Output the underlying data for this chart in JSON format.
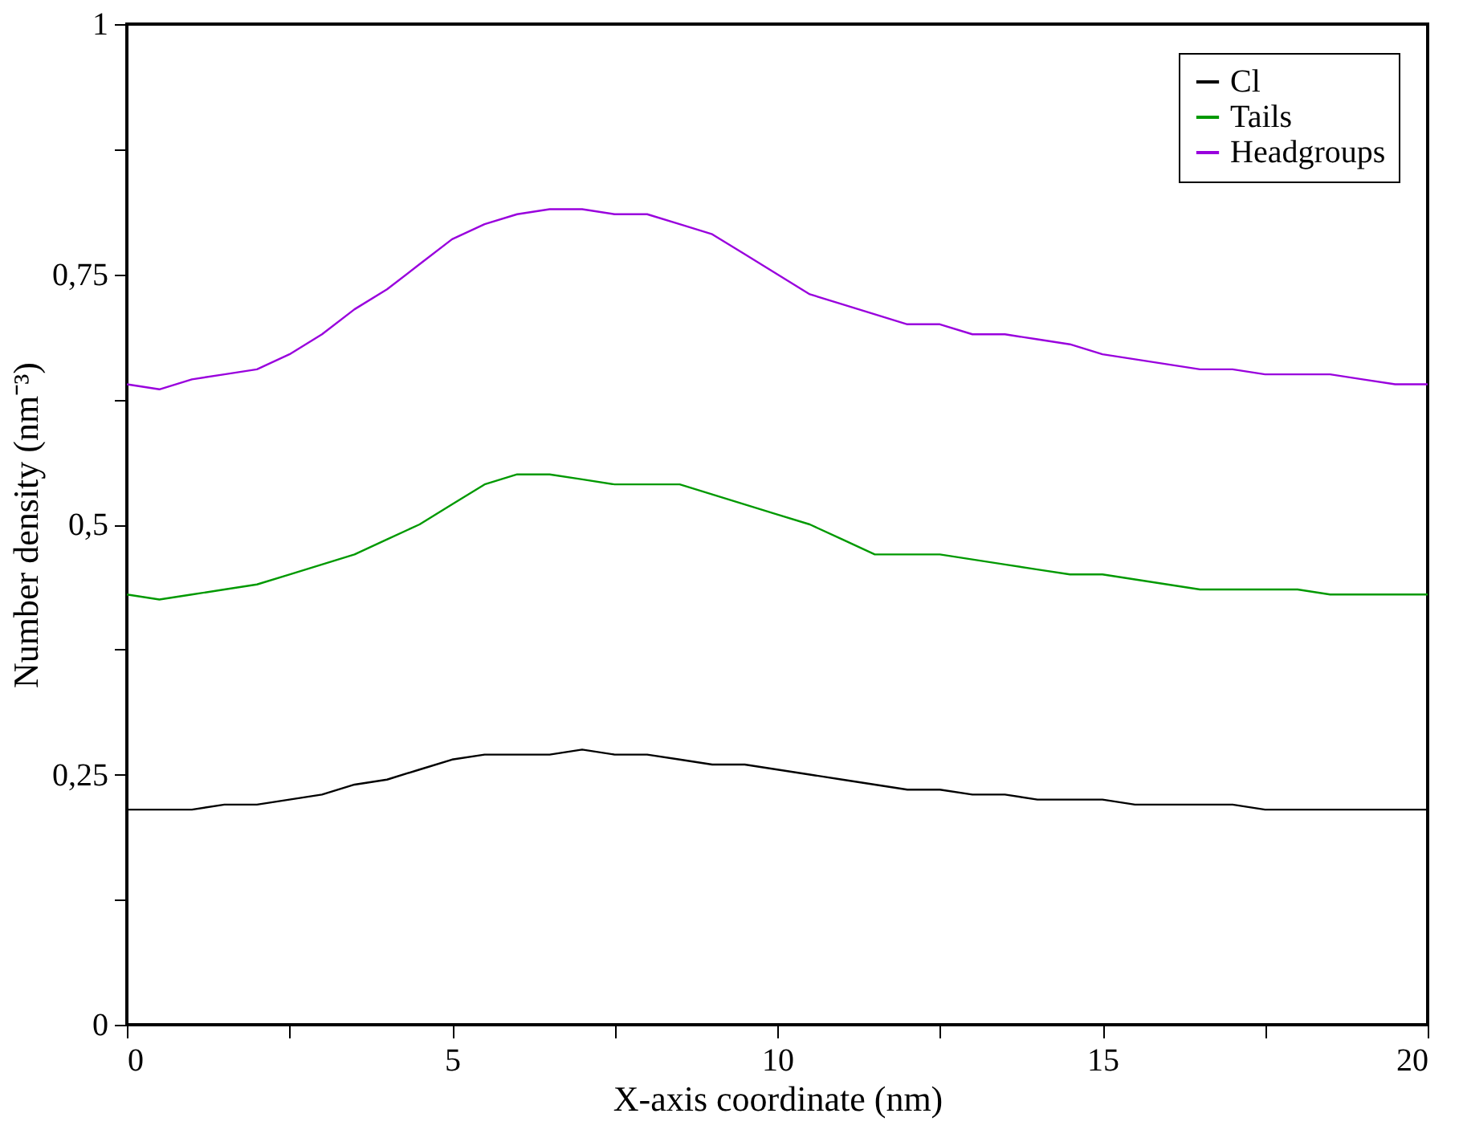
{
  "chart_data": {
    "type": "line",
    "xlabel": "X-axis coordinate (nm)",
    "ylabel": "Number density (nm⁻³)",
    "x": [
      0,
      0.5,
      1,
      1.5,
      2,
      2.5,
      3,
      3.5,
      4,
      4.5,
      5,
      5.5,
      6,
      6.5,
      7,
      7.5,
      8,
      8.5,
      9,
      9.5,
      10,
      10.5,
      11,
      11.5,
      12,
      12.5,
      13,
      13.5,
      14,
      14.5,
      15,
      15.5,
      16,
      16.5,
      17,
      17.5,
      18,
      18.5,
      19,
      19.5,
      20
    ],
    "series": [
      {
        "name": "Cl",
        "color": "#000000",
        "values": [
          0.215,
          0.215,
          0.215,
          0.22,
          0.22,
          0.225,
          0.23,
          0.24,
          0.245,
          0.255,
          0.265,
          0.27,
          0.27,
          0.27,
          0.275,
          0.27,
          0.27,
          0.265,
          0.26,
          0.26,
          0.255,
          0.25,
          0.245,
          0.24,
          0.235,
          0.235,
          0.23,
          0.23,
          0.225,
          0.225,
          0.225,
          0.22,
          0.22,
          0.22,
          0.22,
          0.215,
          0.215,
          0.215,
          0.215,
          0.215,
          0.215
        ]
      },
      {
        "name": "Tails",
        "color": "#009900",
        "values": [
          0.43,
          0.425,
          0.43,
          0.435,
          0.44,
          0.45,
          0.46,
          0.47,
          0.485,
          0.5,
          0.52,
          0.54,
          0.55,
          0.55,
          0.545,
          0.54,
          0.54,
          0.54,
          0.53,
          0.52,
          0.51,
          0.5,
          0.485,
          0.47,
          0.47,
          0.47,
          0.465,
          0.46,
          0.455,
          0.45,
          0.45,
          0.445,
          0.44,
          0.435,
          0.435,
          0.435,
          0.435,
          0.43,
          0.43,
          0.43,
          0.43
        ]
      },
      {
        "name": "Headgroups",
        "color": "#9900dd",
        "values": [
          0.64,
          0.635,
          0.645,
          0.65,
          0.655,
          0.67,
          0.69,
          0.715,
          0.735,
          0.76,
          0.785,
          0.8,
          0.81,
          0.815,
          0.815,
          0.81,
          0.81,
          0.8,
          0.79,
          0.77,
          0.75,
          0.73,
          0.72,
          0.71,
          0.7,
          0.7,
          0.69,
          0.69,
          0.685,
          0.68,
          0.67,
          0.665,
          0.66,
          0.655,
          0.655,
          0.65,
          0.65,
          0.65,
          0.645,
          0.64,
          0.64
        ]
      }
    ],
    "xlim": [
      0,
      20
    ],
    "xticks": [
      0,
      {
        "value": 2.5,
        "label": null
      },
      5,
      {
        "value": 7.5,
        "label": null
      },
      10,
      {
        "value": 12.5,
        "label": null
      },
      15,
      {
        "value": 17.5,
        "label": null
      },
      20
    ],
    "ylim": [
      0,
      1
    ],
    "yticks": [
      0,
      {
        "value": 0.125,
        "label": null
      },
      {
        "value": 0.25,
        "label": "0,25"
      },
      {
        "value": 0.375,
        "label": null
      },
      {
        "value": 0.5,
        "label": "0,5"
      },
      {
        "value": 0.625,
        "label": null
      },
      {
        "value": 0.75,
        "label": "0,75"
      },
      {
        "value": 0.875,
        "label": null
      },
      1
    ],
    "grid": false,
    "legend": "top right",
    "marker": "none",
    "line_style": "solid"
  }
}
